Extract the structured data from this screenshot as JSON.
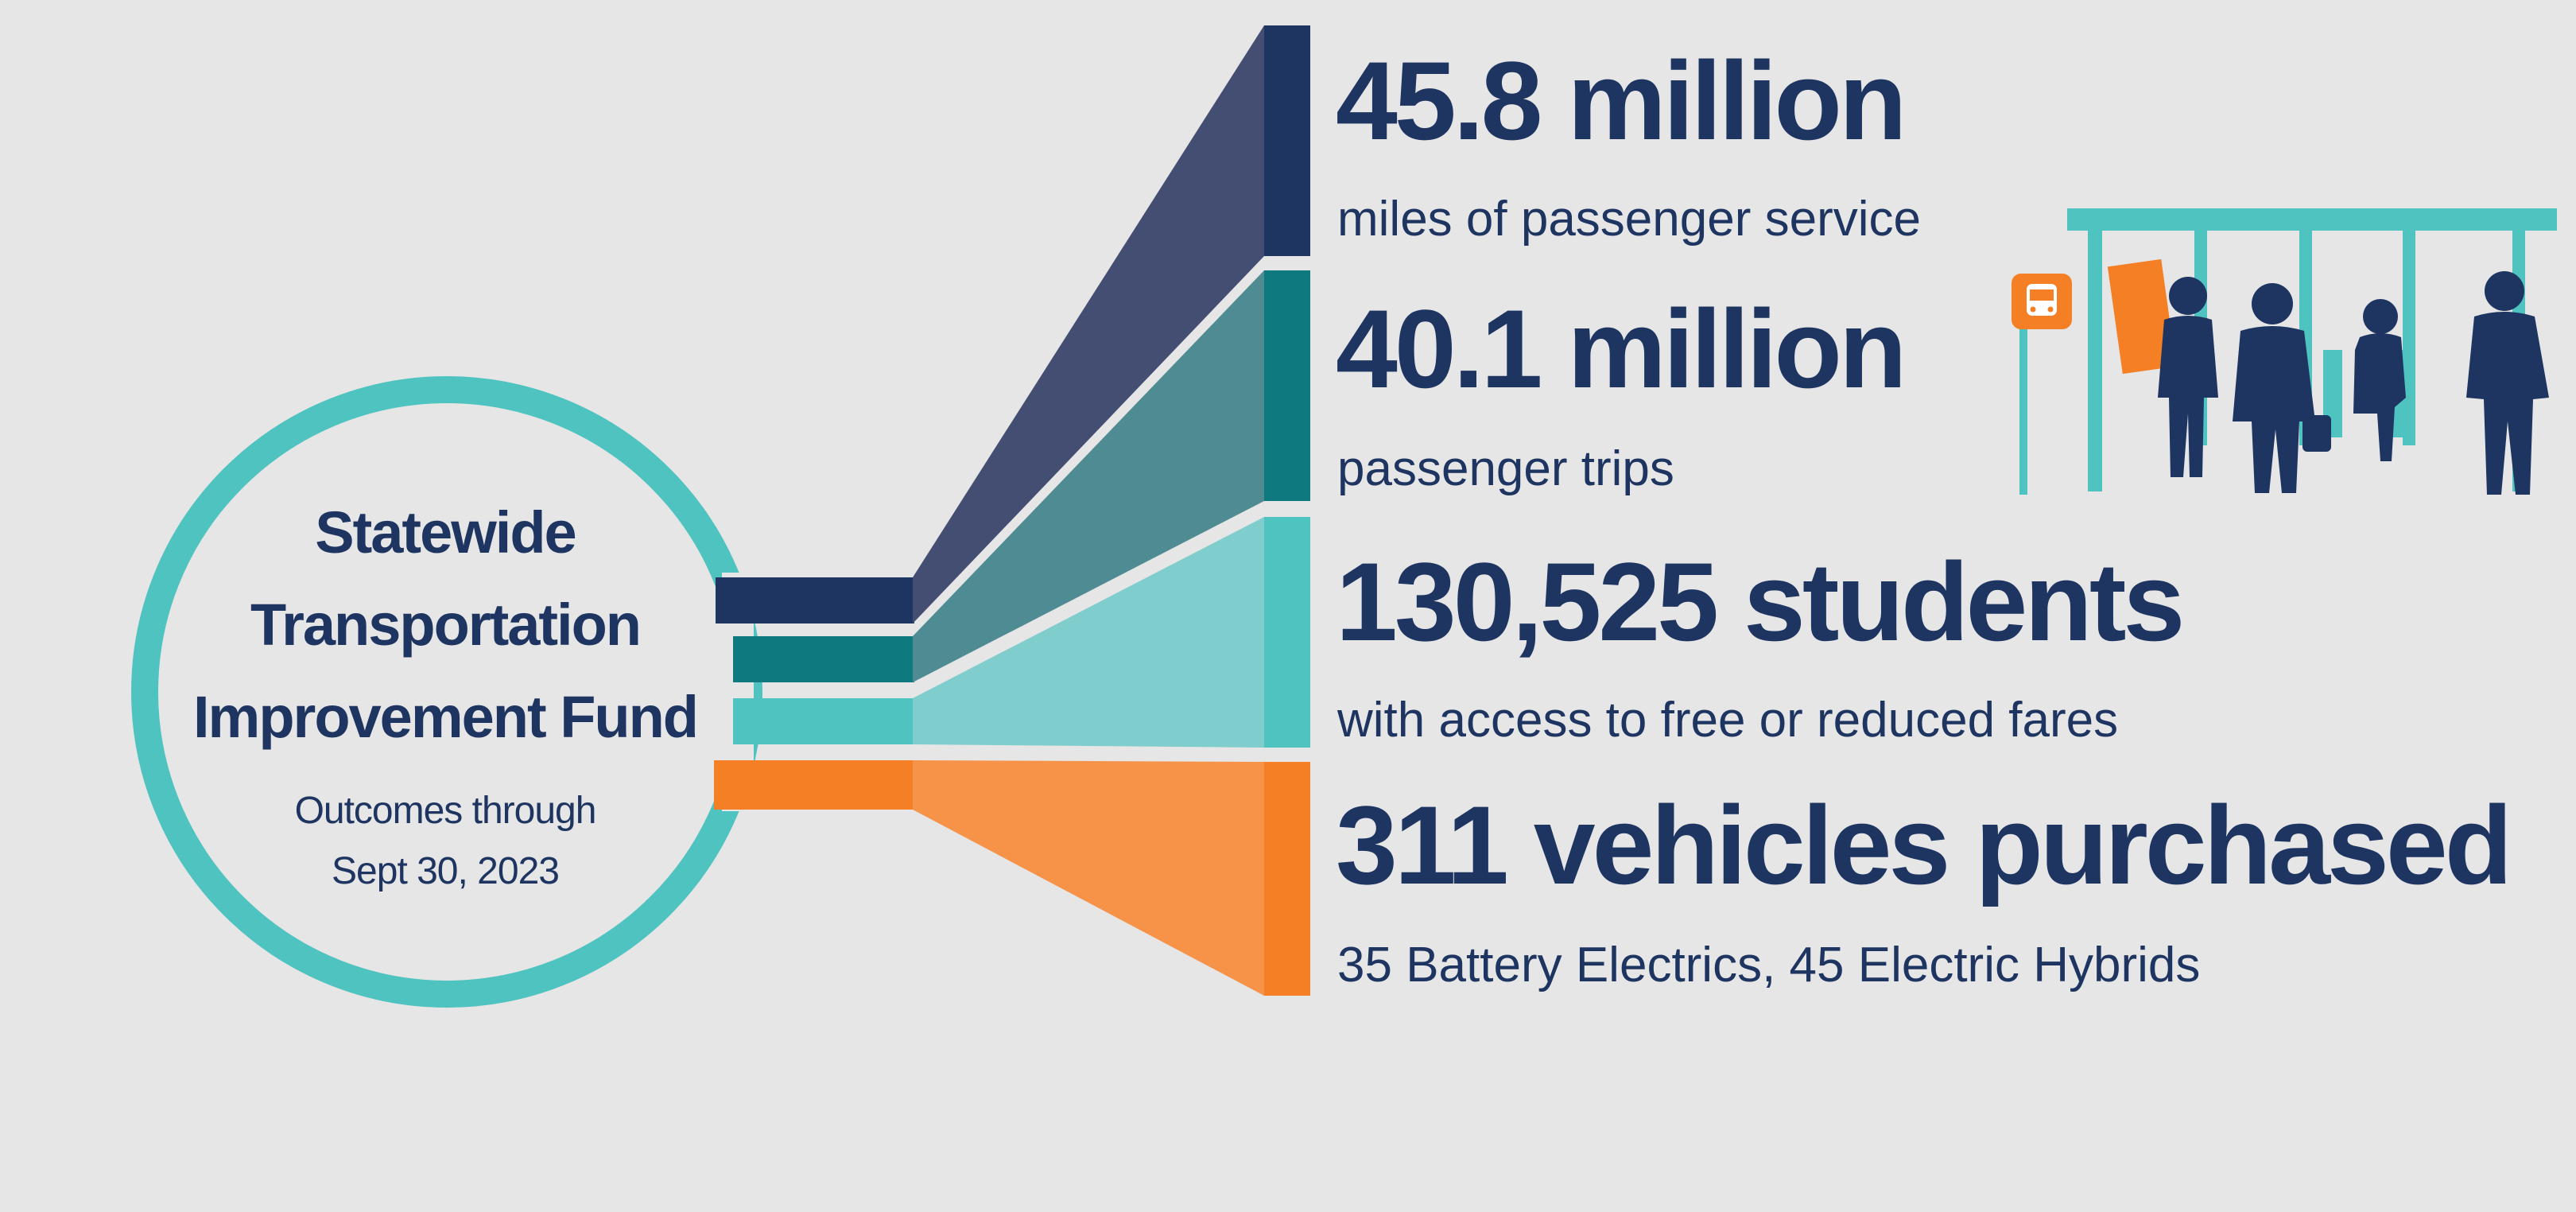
{
  "hub": {
    "title_lines": [
      "Statewide",
      "Transportation",
      "Improvement Fund"
    ],
    "subtitle_lines": [
      "Outcomes through",
      "Sept 30, 2023"
    ]
  },
  "stats": [
    {
      "value": "45.8 million",
      "description": "miles of passenger service",
      "color": "#1e3461"
    },
    {
      "value": "40.1 million",
      "description": "passenger trips",
      "color": "#0e7a80"
    },
    {
      "value": "130,525 students",
      "description": "with access to free or reduced fares",
      "color": "#4fc3c0"
    },
    {
      "value": "311 vehicles purchased",
      "description": "35 Battery Electrics, 45 Electric Hybrids",
      "color": "#f47f24"
    }
  ],
  "colors": {
    "background": "#e6e6e6",
    "text_navy": "#1e3461",
    "ring_teal": "#4fc3c0",
    "accent_orange": "#f47f24"
  },
  "illustration": {
    "icon": "bus-stop-people-icon",
    "sign_icon": "bus-icon"
  }
}
